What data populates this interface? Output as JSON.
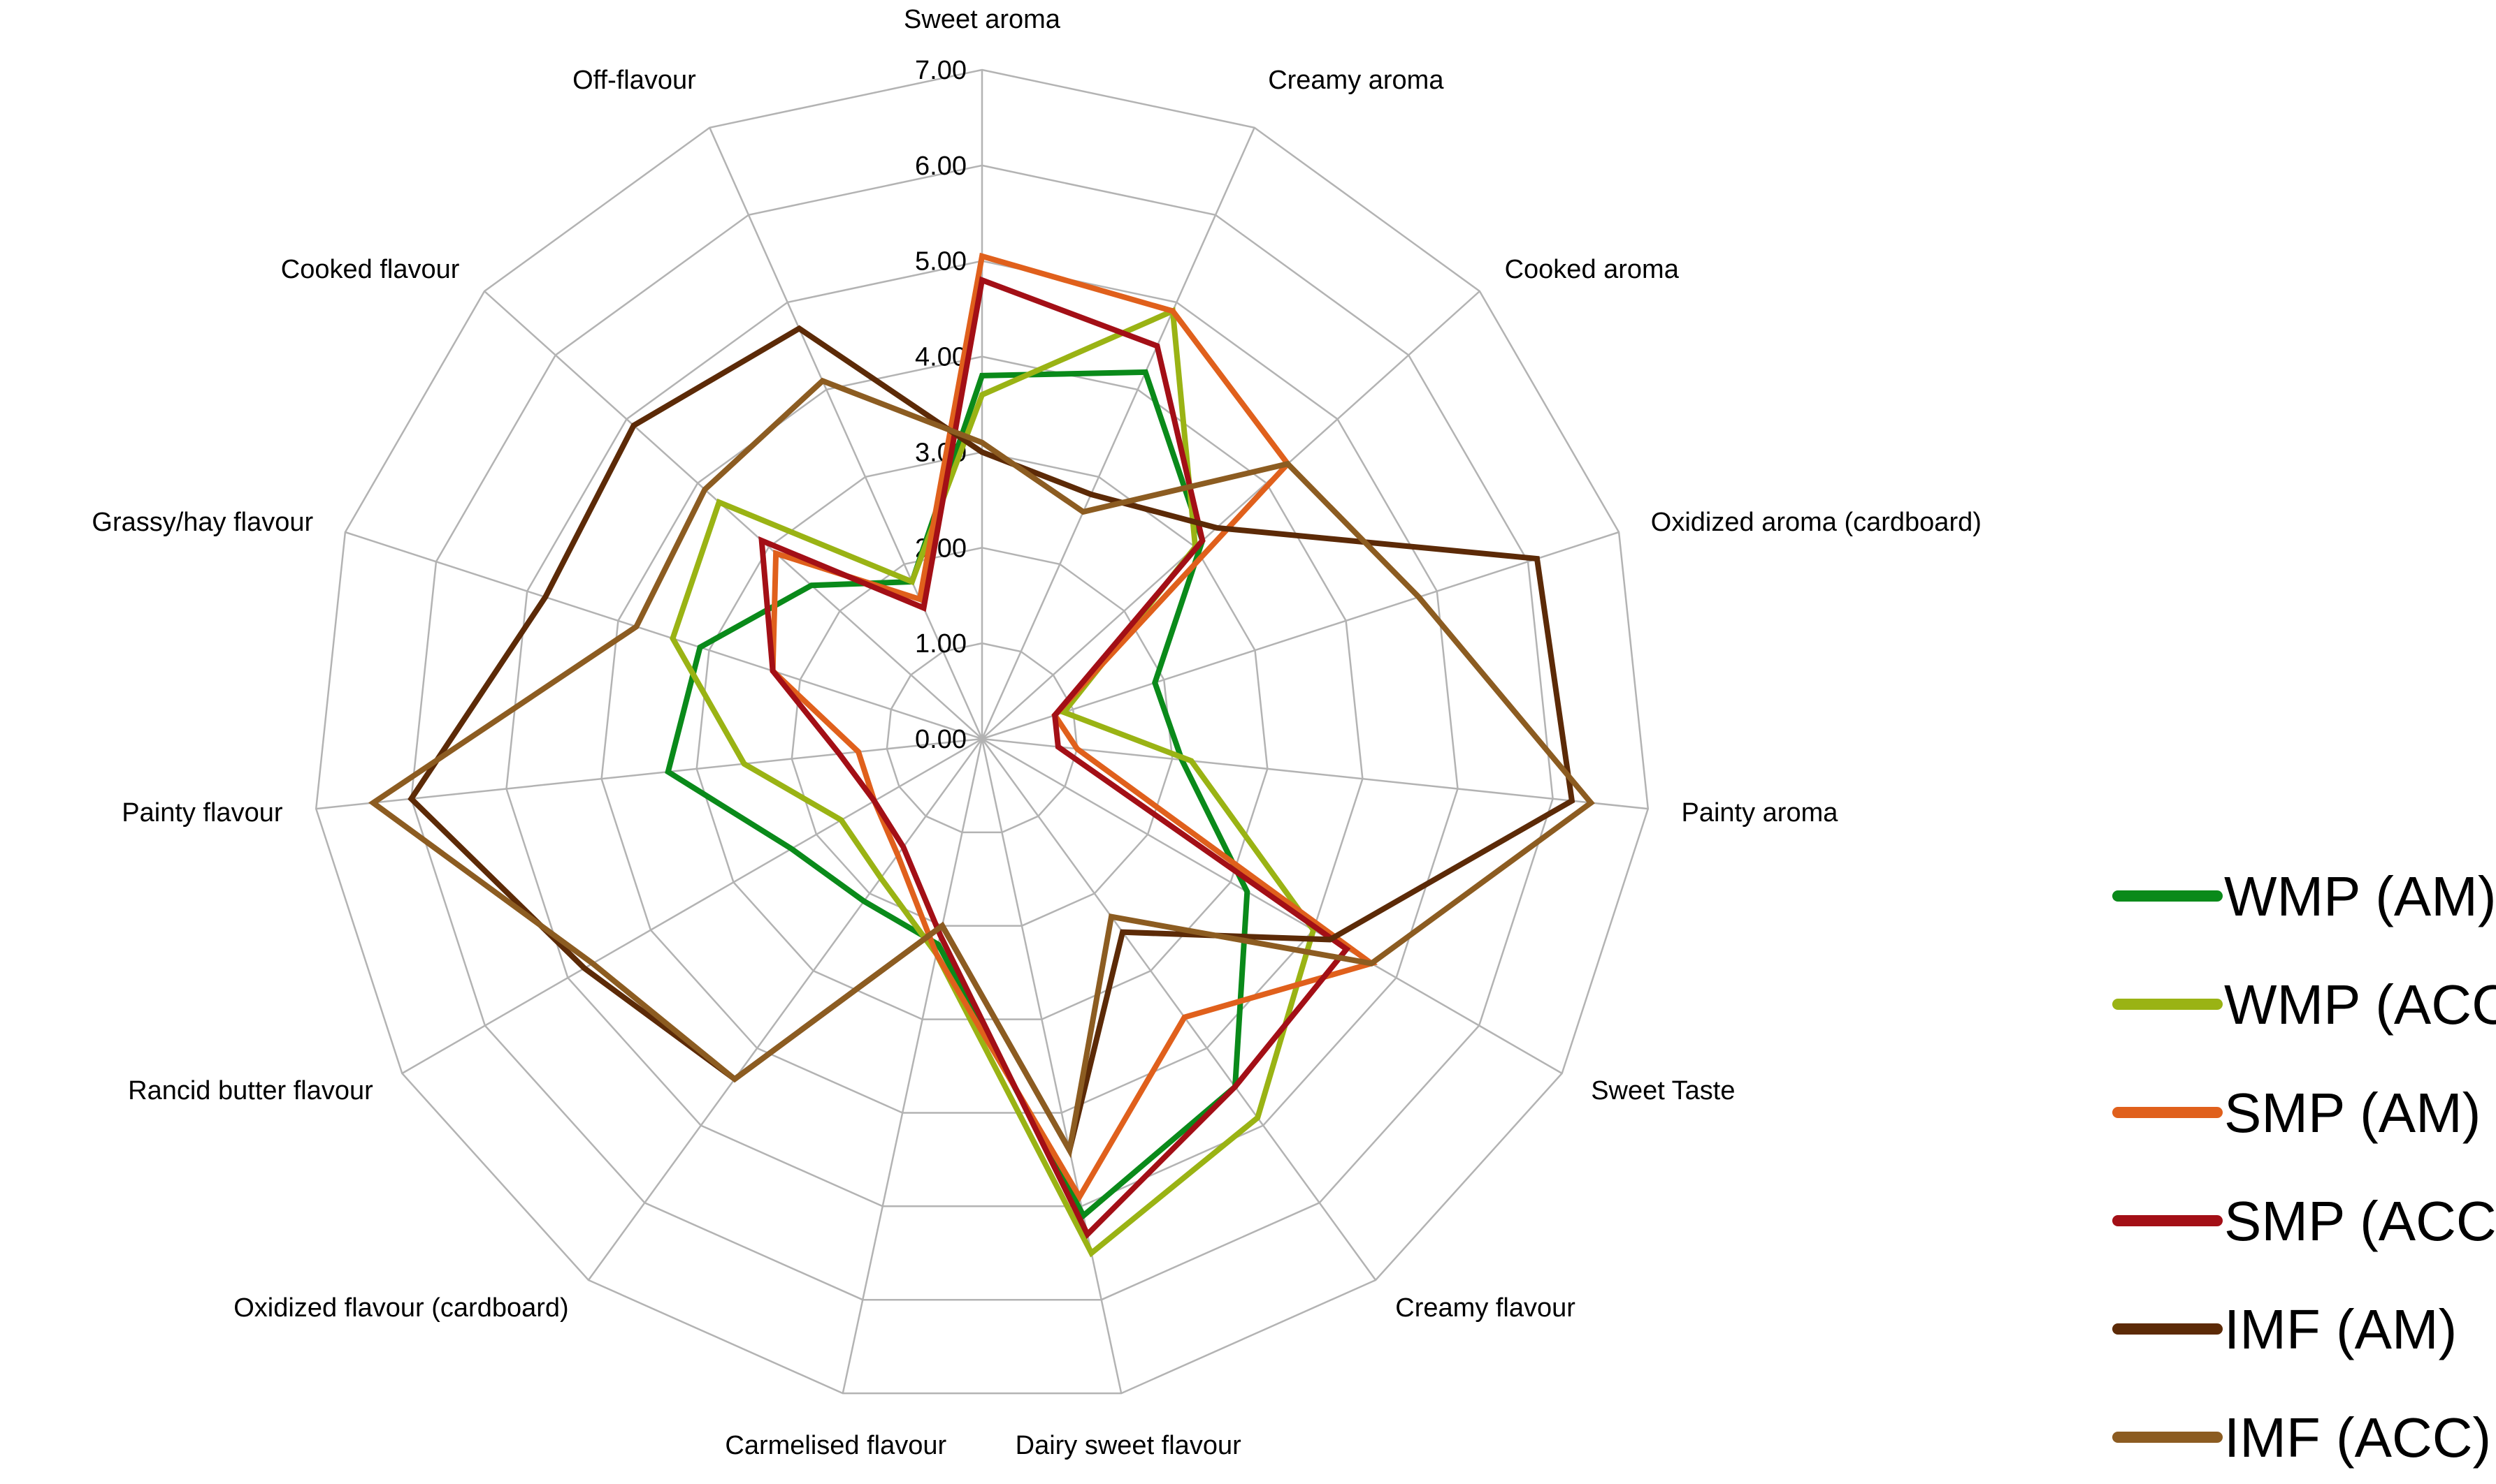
{
  "chart_data": {
    "type": "radar",
    "axes": [
      "Sweet aroma",
      "Creamy aroma",
      "Cooked aroma",
      "Oxidized aroma (cardboard)",
      "Painty aroma",
      "Sweet Taste",
      "Creamy flavour",
      "Dairy sweet flavour",
      "Carmelised flavour",
      "Oxidized flavour (cardboard)",
      "Rancid butter flavour",
      "Painty flavour",
      "Grassy/hay flavour",
      "Cooked flavour",
      "Off-flavour"
    ],
    "ticks": [
      "0.00",
      "1.00",
      "2.00",
      "3.00",
      "4.00",
      "5.00",
      "6.00",
      "7.00"
    ],
    "rlim": [
      0,
      7
    ],
    "legend_position": "right",
    "series": [
      {
        "name": "WMP (AM)",
        "color": "#0a8a1a",
        "values": [
          3.8,
          4.2,
          3.1,
          1.9,
          2.1,
          3.2,
          4.5,
          5.1,
          2.2,
          2.1,
          2.3,
          3.3,
          3.1,
          2.4,
          1.8
        ]
      },
      {
        "name": "WMP (ACC)",
        "color": "#9ab314",
        "values": [
          3.6,
          4.9,
          3.0,
          0.9,
          2.2,
          4.0,
          4.9,
          5.5,
          2.3,
          1.8,
          1.7,
          2.5,
          3.4,
          3.7,
          1.8
        ]
      },
      {
        "name": "SMP (AM)",
        "color": "#e0601c",
        "values": [
          5.05,
          4.9,
          4.3,
          0.8,
          1.0,
          4.7,
          3.6,
          4.9,
          2.3,
          1.5,
          1.3,
          1.3,
          2.3,
          2.9,
          1.6
        ]
      },
      {
        "name": "SMP (ACC)",
        "color": "#a30f16",
        "values": [
          4.8,
          4.5,
          3.1,
          0.8,
          0.8,
          4.4,
          4.5,
          5.3,
          2.1,
          1.4,
          1.3,
          1.5,
          2.3,
          3.1,
          1.5
        ]
      },
      {
        "name": "IMF (AM)",
        "color": "#5c2a07",
        "values": [
          3.0,
          2.8,
          3.3,
          6.1,
          6.2,
          4.2,
          2.5,
          4.4,
          2.0,
          4.4,
          4.8,
          6.0,
          4.8,
          4.9,
          4.7
        ]
      },
      {
        "name": "IMF (ACC)",
        "color": "#8c5c21",
        "values": [
          3.1,
          2.6,
          4.3,
          4.8,
          6.4,
          4.7,
          2.3,
          4.4,
          2.0,
          4.4,
          4.7,
          6.4,
          3.8,
          3.9,
          4.1
        ]
      }
    ]
  }
}
